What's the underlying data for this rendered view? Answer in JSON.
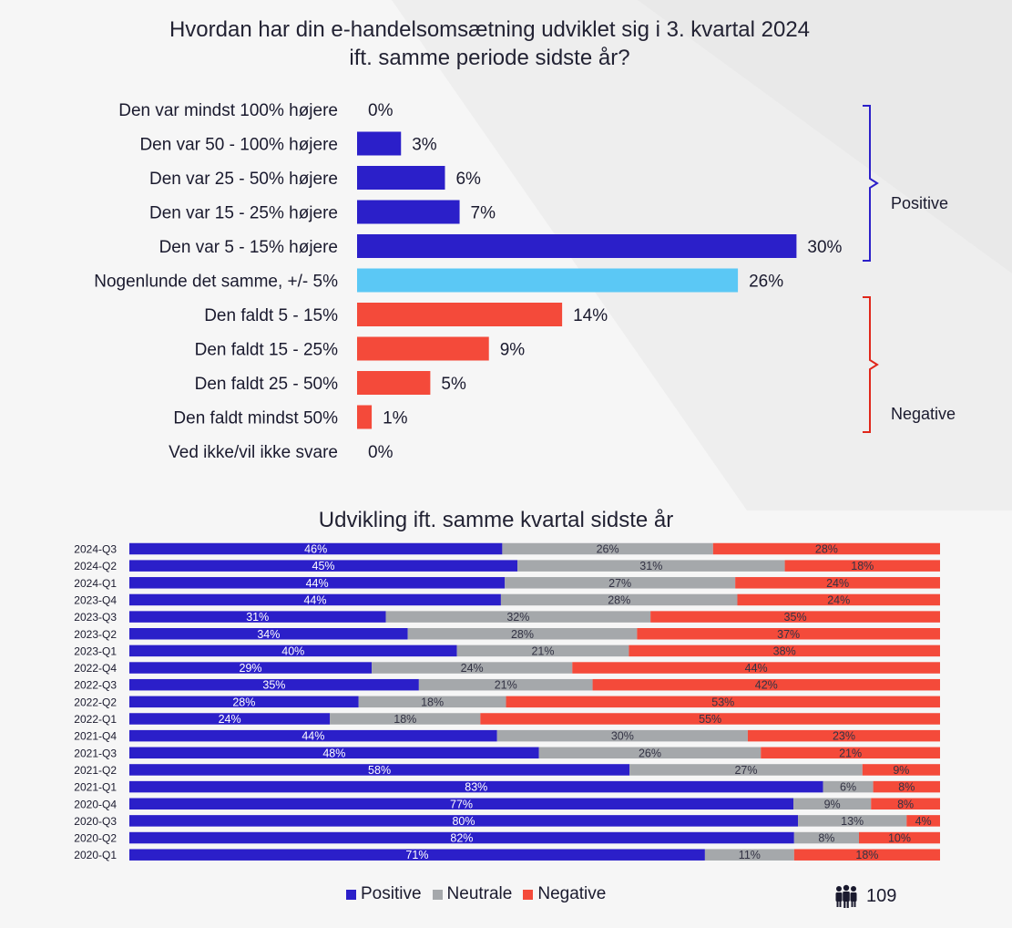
{
  "top_title_line1": "Hvordan har din e-handelsomsætning udviklet sig i 3. kvartal 2024",
  "top_title_line2": "ift. samme periode sidste år?",
  "bottom_title": "Udvikling ift. samme kvartal sidste år",
  "page_number": "109",
  "colors": {
    "positive": "#2b1fc9",
    "neutral_bar": "#5bc8f5",
    "negative": "#f44a3a",
    "neutral_stack": "#a5a8ab",
    "positive_bracket": "#2b1fc9",
    "negative_bracket": "#e0261a"
  },
  "brackets": {
    "positive_label": "Positive",
    "negative_label": "Negative"
  },
  "legend": [
    {
      "label": "Positive",
      "color": "#2b1fc9"
    },
    {
      "label": "Neutrale",
      "color": "#a5a8ab"
    },
    {
      "label": "Negative",
      "color": "#f44a3a"
    }
  ],
  "chart_data": [
    {
      "type": "bar",
      "orientation": "horizontal",
      "title": "Hvordan har din e-handelsomsætning udviklet sig i 3. kvartal 2024 ift. samme periode sidste år?",
      "categories": [
        "Den var mindst 100% højere",
        "Den var 50 - 100% højere",
        "Den var 25 - 50% højere",
        "Den var 15 - 25% højere",
        "Den var 5 - 15% højere",
        "Nogenlunde det samme, +/- 5%",
        "Den faldt 5 - 15%",
        "Den faldt 15 - 25%",
        "Den faldt 25 - 50%",
        "Den faldt mindst 50%",
        "Ved ikke/vil ikke svare"
      ],
      "values": [
        0,
        3,
        6,
        7,
        30,
        26,
        14,
        9,
        5,
        1,
        0
      ],
      "value_labels": [
        "0%",
        "3%",
        "6%",
        "7%",
        "30%",
        "26%",
        "14%",
        "9%",
        "5%",
        "1%",
        "0%"
      ],
      "groups": [
        "positive",
        "positive",
        "positive",
        "positive",
        "positive",
        "neutral",
        "negative",
        "negative",
        "negative",
        "negative",
        "none"
      ]
    },
    {
      "type": "bar",
      "orientation": "horizontal",
      "stacked": true,
      "title": "Udvikling ift. samme kvartal sidste år",
      "categories": [
        "2024-Q3",
        "2024-Q2",
        "2024-Q1",
        "2023-Q4",
        "2023-Q3",
        "2023-Q2",
        "2023-Q1",
        "2022-Q4",
        "2022-Q3",
        "2022-Q2",
        "2022-Q1",
        "2021-Q4",
        "2021-Q3",
        "2021-Q2",
        "2021-Q1",
        "2020-Q4",
        "2020-Q3",
        "2020-Q2",
        "2020-Q1"
      ],
      "series": [
        {
          "name": "Positive",
          "values": [
            46,
            45,
            44,
            44,
            31,
            34,
            40,
            29,
            35,
            28,
            24,
            44,
            48,
            58,
            83,
            77,
            80,
            82,
            71
          ]
        },
        {
          "name": "Neutrale",
          "values": [
            26,
            31,
            27,
            28,
            32,
            28,
            21,
            24,
            21,
            18,
            18,
            30,
            26,
            27,
            6,
            9,
            13,
            8,
            11
          ]
        },
        {
          "name": "Negative",
          "values": [
            28,
            18,
            24,
            24,
            35,
            37,
            38,
            44,
            42,
            53,
            55,
            23,
            21,
            9,
            8,
            8,
            4,
            10,
            18
          ]
        }
      ],
      "legend_position": "bottom"
    }
  ]
}
